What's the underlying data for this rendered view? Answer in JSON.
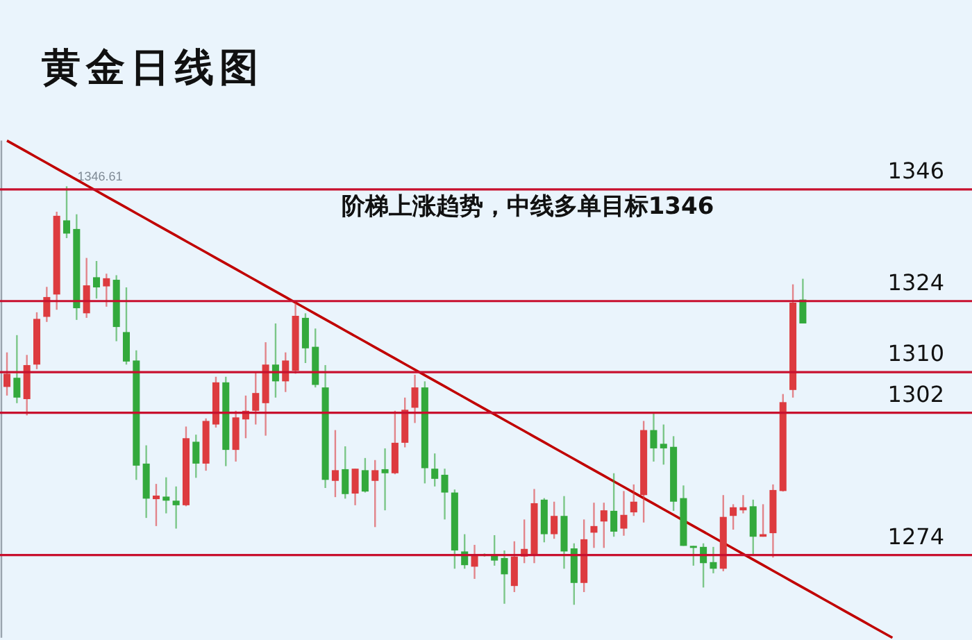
{
  "chart_data": {
    "type": "candlestick",
    "title": "黄金日线图",
    "categories": [
      null,
      null,
      null,
      null,
      null,
      null,
      null,
      null,
      null,
      null,
      null,
      null,
      null,
      null,
      null,
      null,
      null,
      null,
      null,
      null,
      null,
      null,
      null,
      null,
      null,
      null,
      null,
      null,
      null,
      null,
      null,
      null,
      null,
      null,
      null,
      null,
      null,
      null,
      null,
      null,
      null,
      null,
      null,
      null,
      null,
      null,
      null,
      null,
      null,
      null,
      null,
      null,
      null,
      null,
      null,
      null,
      null,
      null,
      null,
      null,
      null,
      null,
      null,
      null,
      null,
      null,
      null,
      null,
      null,
      null,
      null,
      null,
      null,
      null,
      null,
      null,
      null,
      null,
      null,
      null,
      null,
      null,
      null,
      null,
      null,
      null,
      null,
      null,
      null,
      null
    ],
    "ohlc": [
      [
        1307.1,
        1313.9,
        1305.4,
        1309.7
      ],
      [
        1308.9,
        1317.3,
        1303.9,
        1305.0
      ],
      [
        1304.7,
        1313.4,
        1301.5,
        1311.4
      ],
      [
        1311.5,
        1321.8,
        1310.6,
        1320.5
      ],
      [
        1320.9,
        1326.8,
        1319.9,
        1324.8
      ],
      [
        1325.3,
        1341.6,
        1322.3,
        1340.8
      ],
      [
        1339.9,
        1346.61,
        1336.4,
        1337.3
      ],
      [
        1338.2,
        1341.1,
        1320.3,
        1322.6
      ],
      [
        1321.6,
        1332.5,
        1320.7,
        1327.1
      ],
      [
        1328.7,
        1331.9,
        1324.5,
        1326.7
      ],
      [
        1326.9,
        1329.4,
        1322.9,
        1328.5
      ],
      [
        1328.2,
        1329.1,
        1316.1,
        1318.9
      ],
      [
        1317.9,
        1326.7,
        1311.5,
        1312.1
      ],
      [
        1312.3,
        1314.3,
        1288.8,
        1291.6
      ],
      [
        1292.0,
        1295.6,
        1281.3,
        1285.1
      ],
      [
        1285.0,
        1288.0,
        1279.7,
        1285.7
      ],
      [
        1285.5,
        1289.3,
        1282.2,
        1284.7
      ],
      [
        1284.7,
        1287.5,
        1279.2,
        1283.8
      ],
      [
        1283.8,
        1299.3,
        1283.6,
        1297.0
      ],
      [
        1296.3,
        1297.7,
        1289.2,
        1292.0
      ],
      [
        1292.0,
        1300.9,
        1290.6,
        1300.4
      ],
      [
        1299.7,
        1309.1,
        1299.1,
        1308.0
      ],
      [
        1308.0,
        1309.1,
        1291.5,
        1294.7
      ],
      [
        1294.7,
        1302.4,
        1292.4,
        1301.1
      ],
      [
        1300.7,
        1305.4,
        1297.0,
        1302.4
      ],
      [
        1302.4,
        1309.9,
        1299.7,
        1305.9
      ],
      [
        1303.9,
        1315.9,
        1297.5,
        1311.5
      ],
      [
        1311.5,
        1319.6,
        1305.0,
        1308.2
      ],
      [
        1308.2,
        1313.9,
        1306.1,
        1312.3
      ],
      [
        1310.3,
        1323.7,
        1309.7,
        1321.1
      ],
      [
        1320.7,
        1321.6,
        1311.8,
        1314.7
      ],
      [
        1315.0,
        1318.6,
        1307.0,
        1307.5
      ],
      [
        1307.0,
        1311.4,
        1287.2,
        1288.8
      ],
      [
        1288.6,
        1298.6,
        1285.4,
        1290.7
      ],
      [
        1290.9,
        1295.4,
        1285.1,
        1286.0
      ],
      [
        1286.1,
        1291.0,
        1283.8,
        1291.0
      ],
      [
        1290.7,
        1293.1,
        1286.3,
        1286.5
      ],
      [
        1288.6,
        1292.7,
        1279.5,
        1290.7
      ],
      [
        1290.9,
        1295.0,
        1282.8,
        1290.1
      ],
      [
        1290.1,
        1302.4,
        1289.9,
        1296.1
      ],
      [
        1296.1,
        1305.0,
        1295.2,
        1302.6
      ],
      [
        1303.0,
        1309.5,
        1300.0,
        1307.0
      ],
      [
        1307.0,
        1308.2,
        1288.1,
        1291.1
      ],
      [
        1291.0,
        1294.0,
        1287.5,
        1289.0
      ],
      [
        1289.8,
        1291.0,
        1281.0,
        1286.3
      ],
      [
        1286.3,
        1286.9,
        1271.3,
        1274.9
      ],
      [
        1274.7,
        1278.1,
        1271.3,
        1272.0
      ],
      [
        1271.7,
        1276.0,
        1269.3,
        1273.8
      ],
      [
        1274.2,
        1274.3,
        1273.7,
        1273.9
      ],
      [
        1274.0,
        1277.9,
        1271.9,
        1272.9
      ],
      [
        1273.4,
        1274.9,
        1264.4,
        1270.2
      ],
      [
        1267.9,
        1276.7,
        1266.7,
        1273.7
      ],
      [
        1273.7,
        1281.0,
        1272.4,
        1275.2
      ],
      [
        1274.0,
        1287.0,
        1272.4,
        1284.2
      ],
      [
        1284.9,
        1285.2,
        1276.5,
        1278.1
      ],
      [
        1278.1,
        1284.5,
        1277.2,
        1281.7
      ],
      [
        1281.7,
        1285.6,
        1271.3,
        1274.7
      ],
      [
        1275.3,
        1276.3,
        1264.2,
        1268.5
      ],
      [
        1268.5,
        1281.0,
        1266.7,
        1277.1
      ],
      [
        1278.4,
        1284.3,
        1275.4,
        1279.7
      ],
      [
        1280.6,
        1284.3,
        1275.4,
        1282.8
      ],
      [
        1282.7,
        1290.1,
        1277.6,
        1278.6
      ],
      [
        1279.2,
        1286.6,
        1277.8,
        1281.9
      ],
      [
        1282.4,
        1287.9,
        1281.7,
        1284.5
      ],
      [
        1285.8,
        1300.4,
        1280.4,
        1298.6
      ],
      [
        1298.6,
        1302.2,
        1292.4,
        1295.0
      ],
      [
        1295.9,
        1299.7,
        1291.8,
        1295.0
      ],
      [
        1295.3,
        1297.4,
        1282.7,
        1284.5
      ],
      [
        1285.2,
        1287.7,
        1275.8,
        1275.8
      ],
      [
        1275.8,
        1275.8,
        1271.9,
        1275.4
      ],
      [
        1275.6,
        1276.3,
        1267.6,
        1272.4
      ],
      [
        1272.6,
        1275.6,
        1270.4,
        1271.3
      ],
      [
        1271.3,
        1285.8,
        1270.8,
        1281.5
      ],
      [
        1281.7,
        1284.0,
        1279.0,
        1283.4
      ],
      [
        1282.8,
        1285.8,
        1282.2,
        1283.4
      ],
      [
        1283.6,
        1284.9,
        1274.0,
        1277.6
      ],
      [
        1277.6,
        1284.0,
        1277.6,
        1278.1
      ],
      [
        1278.3,
        1287.9,
        1273.5,
        1286.8
      ],
      [
        1286.6,
        1305.7,
        1286.5,
        1304.1
      ],
      [
        1306.5,
        1327.3,
        1305.0,
        1323.7
      ],
      [
        1324.3,
        1328.4,
        1319.6,
        1319.6
      ],
      null,
      null,
      null,
      null,
      null,
      null,
      null,
      null,
      null
    ],
    "colors": [
      "#dd3b3f",
      "#33a93c",
      "#dd3b3f",
      "#dd3b3f",
      "#dd3b3f",
      "#dd3b3f",
      "#33a93c",
      "#33a93c",
      "#dd3b3f",
      "#33a93c",
      "#dd3b3f",
      "#33a93c",
      "#33a93c",
      "#33a93c",
      "#33a93c",
      "#dd3b3f",
      "#33a93c",
      "#33a93c",
      "#dd3b3f",
      "#33a93c",
      "#dd3b3f",
      "#dd3b3f",
      "#33a93c",
      "#dd3b3f",
      "#dd3b3f",
      "#dd3b3f",
      "#dd3b3f",
      "#33a93c",
      "#dd3b3f",
      "#dd3b3f",
      "#33a93c",
      "#33a93c",
      "#33a93c",
      "#dd3b3f",
      "#33a93c",
      "#dd3b3f",
      "#33a93c",
      "#dd3b3f",
      "#33a93c",
      "#dd3b3f",
      "#dd3b3f",
      "#dd3b3f",
      "#33a93c",
      "#33a93c",
      "#33a93c",
      "#33a93c",
      "#33a93c",
      "#dd3b3f",
      "#33a93c",
      "#33a93c",
      "#33a93c",
      "#dd3b3f",
      "#dd3b3f",
      "#dd3b3f",
      "#33a93c",
      "#dd3b3f",
      "#33a93c",
      "#33a93c",
      "#dd3b3f",
      "#dd3b3f",
      "#dd3b3f",
      "#33a93c",
      "#dd3b3f",
      "#dd3b3f",
      "#dd3b3f",
      "#33a93c",
      "#33a93c",
      "#33a93c",
      "#33a93c",
      "#33a93c",
      "#33a93c",
      "#33a93c",
      "#dd3b3f",
      "#dd3b3f",
      "#dd3b3f",
      "#33a93c",
      "#dd3b3f",
      "#dd3b3f",
      "#dd3b3f",
      "#dd3b3f",
      "#33a93c",
      null,
      null,
      null,
      null,
      null,
      null,
      null,
      null,
      null
    ],
    "series": [
      {
        "type": "line",
        "color": "#c00000",
        "values": [
          1355.6,
          1354.5,
          1353.4,
          1352.3,
          1351.2,
          1350.1,
          1349.0,
          1347.9,
          1346.8,
          1345.7,
          1344.6,
          1343.5,
          1342.4,
          1341.3,
          1340.2,
          1339.1,
          1338.0,
          1336.9,
          1335.8,
          1334.7,
          1333.6,
          1332.5,
          1331.4,
          1330.3,
          1329.2,
          1328.1,
          1327.0,
          1325.9,
          1324.8,
          1323.7,
          1322.6,
          1321.5,
          1320.4,
          1319.3,
          1318.2,
          1317.1,
          1316.0,
          1314.9,
          1313.8,
          1312.7,
          1311.6,
          1310.5,
          1309.4,
          1308.3,
          1307.2,
          1306.1,
          1305.0,
          1303.9,
          1302.8,
          1301.7,
          1300.6,
          1299.5,
          1298.4,
          1297.3,
          1296.2,
          1295.1,
          1294.0,
          1292.9,
          1291.8,
          1290.7,
          1289.6,
          1288.5,
          1287.4,
          1286.3,
          1285.2,
          1284.1,
          1283.0,
          1281.9,
          1280.8,
          1279.7,
          1278.6,
          1277.5,
          1276.4,
          1275.3,
          1274.2,
          1273.1,
          1272.0,
          1270.9,
          1269.8,
          1268.7,
          1267.6,
          1266.5,
          1265.4,
          1264.3,
          1263.2,
          1262.1,
          1261.0,
          1259.9,
          1258.8,
          1257.7
        ]
      }
    ],
    "ylim": [
      1257.7,
      1355.6
    ],
    "yticks": [
      1274,
      1302,
      1310,
      1324,
      1346
    ],
    "grid": "y",
    "annotations": [
      "阶梯上涨趋势，中线多单目标1346",
      {
        "text": "1346.61",
        "y": 1346.61
      }
    ]
  }
}
